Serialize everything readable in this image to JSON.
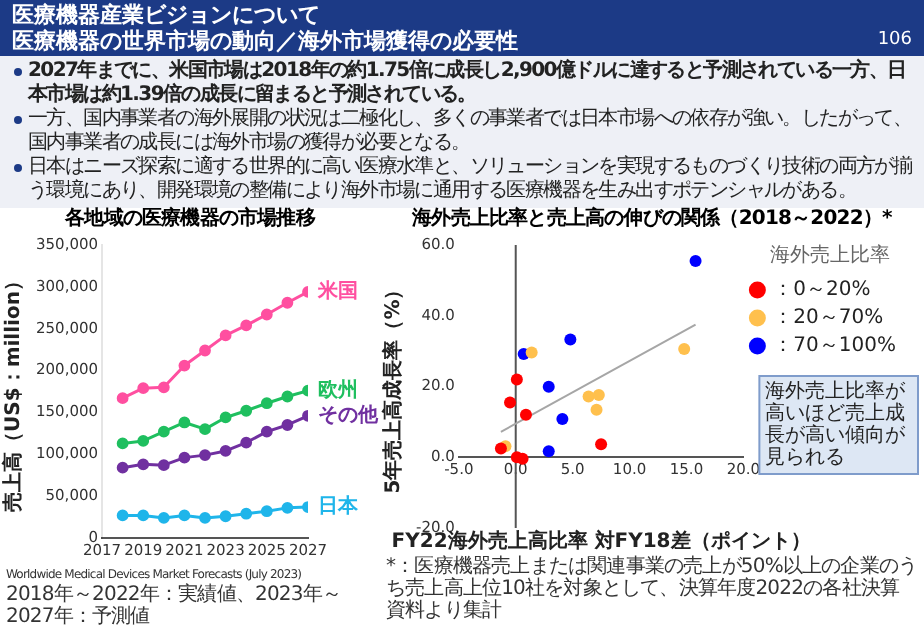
{
  "chart_data": [
    {
      "type": "other",
      "title": "医療機器産業ビジョンについて",
      "subtitle": "医療機器の世界市場の動向／海外市場獲得の必要性",
      "annotations": [
        "2027年までに、米国市場は2018年の約1.75倍に成長し2,900億ドルに達すると予測されている一方、日本市場は約1.39倍の成長に留まると予測されている。",
        "一方、国内事業者の海外展開の状況は二極化し、多くの事業者では日本市場への依存が強い。したがって、国内事業者の成長には海外市場の獲得が必要となる。",
        "日本はニーズ探索に適する世界的に高い医療水準と、ソリューションを実現するものづくり技術の両方が揃う環境にあり、開発環境の整備により海外市場に通用する医療機器を生み出すポテンシャルがある。",
        "106"
      ]
    },
    {
      "type": "line",
      "title": "各地域の医療機器の市場推移",
      "ylabel": "売上高（US$：million）",
      "x": [
        2018,
        2019,
        2020,
        2021,
        2022,
        2023,
        2024,
        2025,
        2026,
        2027
      ],
      "xlim": [
        2017,
        2027
      ],
      "xticks": [
        2017,
        2019,
        2021,
        2023,
        2025,
        2027
      ],
      "ylim": [
        0,
        350000
      ],
      "yticks": [
        0,
        {
          "value": 50000,
          "label": "50,000"
        },
        {
          "value": 100000,
          "label": "100,000"
        },
        {
          "value": 150000,
          "label": "150,000"
        },
        {
          "value": 200000,
          "label": "200,000"
        },
        {
          "value": 250000,
          "label": "250,000"
        },
        {
          "value": 300000,
          "label": "300,000"
        },
        {
          "value": 350000,
          "label": "350,000"
        }
      ],
      "marker": "circle",
      "series": [
        {
          "name": "米国",
          "color": "#ff4fa0",
          "values": [
            167000,
            179000,
            180000,
            206000,
            224000,
            242000,
            254000,
            267000,
            281000,
            294000
          ]
        },
        {
          "name": "欧州",
          "color": "#1fbf5f",
          "values": [
            113000,
            116000,
            127000,
            138000,
            130000,
            144000,
            152000,
            161000,
            169000,
            176000
          ]
        },
        {
          "name": "その他",
          "color": "#7030a0",
          "values": [
            84000,
            88000,
            87000,
            96000,
            99000,
            104000,
            114000,
            127000,
            135000,
            146000
          ]
        },
        {
          "name": "日本",
          "color": "#1fb5ea",
          "values": [
            27000,
            27000,
            24000,
            27000,
            24000,
            26000,
            29000,
            32000,
            36000,
            37000
          ]
        }
      ],
      "annotations": [
        "Worldwide Medical Devices Market Forecasts (July 2023)",
        "2018年～2022年：実績値、2023年～2027年：予測値"
      ]
    },
    {
      "type": "scatter",
      "title": "海外売上比率と売上高の伸びの関係（2018～2022）*",
      "xlabel": "FY22海外売上高比率 対FY18差（ポイント）",
      "ylabel": "5年売上高成長率（%）",
      "xlim": [
        -5,
        20
      ],
      "xticks": [
        {
          "value": -5,
          "label": "-5.0"
        },
        {
          "value": 0,
          "label": "0.0"
        },
        {
          "value": 5,
          "label": "5.0"
        },
        {
          "value": 10,
          "label": "10.0"
        },
        {
          "value": 15,
          "label": "15.0"
        },
        {
          "value": 20,
          "label": "20.0"
        }
      ],
      "ylim": [
        -20,
        60
      ],
      "yticks": [
        {
          "value": -20,
          "label": "-20.0"
        },
        {
          "value": 0,
          "label": "0.0"
        },
        {
          "value": 20,
          "label": "20.0"
        },
        {
          "value": 40,
          "label": "40.0"
        },
        {
          "value": 60,
          "label": "60.0"
        }
      ],
      "marker": "circle",
      "legend": "top right",
      "legend_title": "海外売上比率",
      "series": [
        {
          "name": "：0～20%",
          "color": "#ff0000",
          "x": [
            -1.3,
            -0.5,
            0.1,
            0.9,
            0.1,
            0.6,
            7.5
          ],
          "values": [
            2.5,
            15.5,
            22,
            12,
            0,
            -0.4,
            3.7
          ]
        },
        {
          "name": "：20～70%",
          "color": "#ffc04d",
          "x": [
            -0.9,
            1.4,
            6.4,
            7.3,
            7.1,
            14.8
          ],
          "values": [
            3.1,
            29.6,
            17.2,
            17.6,
            13.4,
            30.6
          ]
        },
        {
          "name": "：70～100%",
          "color": "#0000ff",
          "x": [
            0.7,
            2.9,
            4.8,
            4.1,
            2.9,
            15.8
          ],
          "values": [
            29.2,
            19.9,
            33.3,
            10.8,
            1.7,
            55.5
          ]
        },
        {
          "type": "line",
          "color": "#a6a6a6",
          "marker": "none",
          "x": [
            -1.3,
            15.8
          ],
          "values": [
            7.2,
            37.5
          ]
        }
      ],
      "annotations": [
        "海外売上比率が高いほど売上成長が高い傾向が見られる",
        "*：医療機器売上または関連事業の売上が50%以上の企業のうち売上高上位10社を対象として、決算年度2022の各社決算資料より集計"
      ]
    }
  ]
}
